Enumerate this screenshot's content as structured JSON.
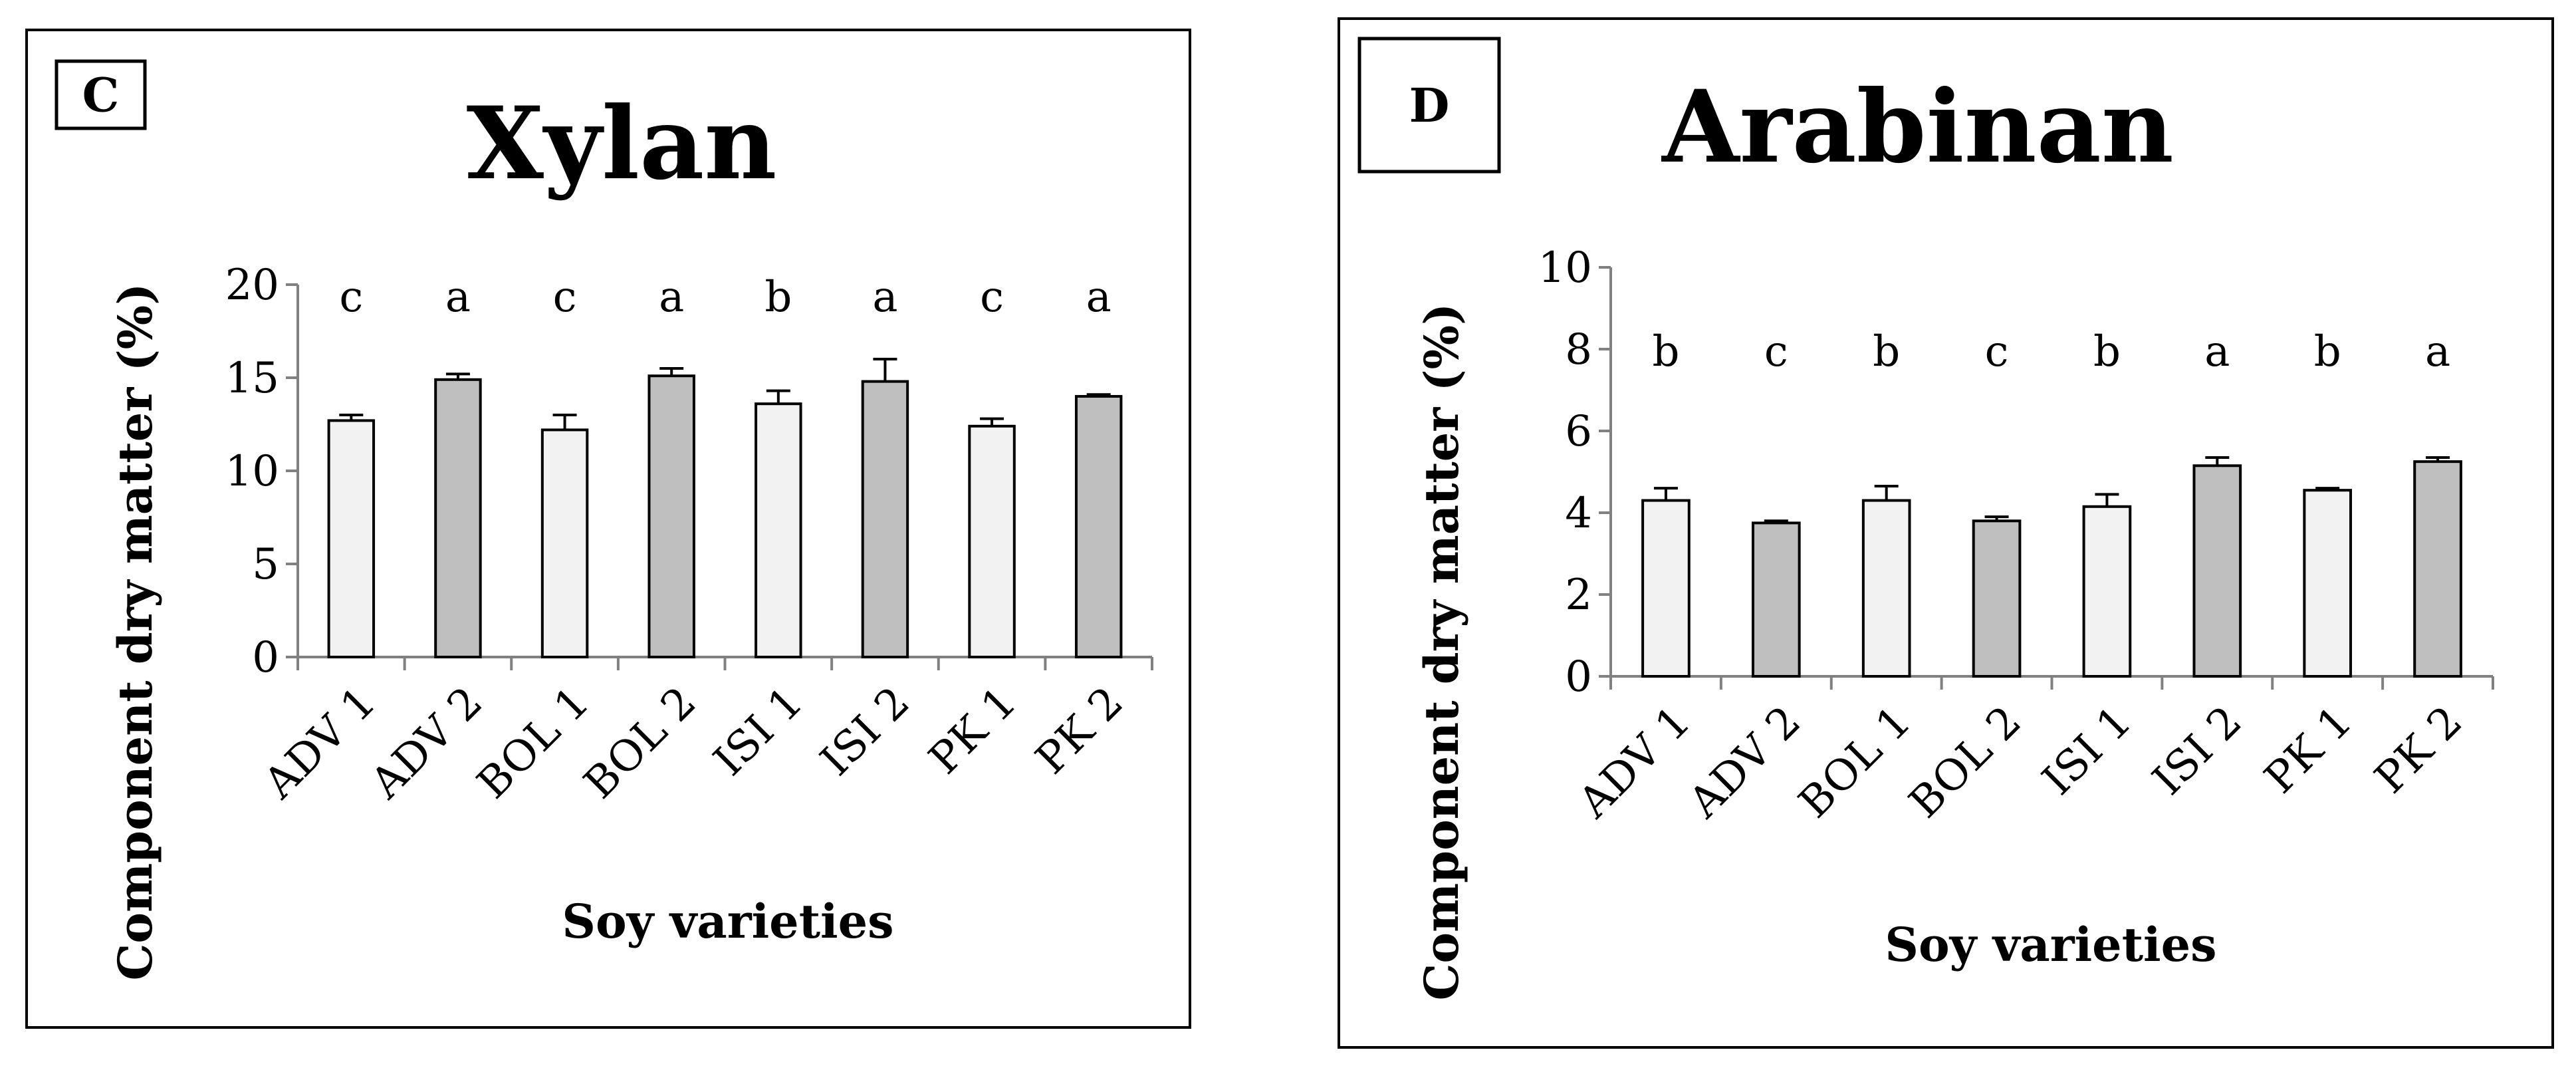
{
  "chart_data": [
    {
      "type": "bar",
      "panel_label": "C",
      "title": "Xylan",
      "xlabel": "Soy varieties",
      "ylabel": "Component dry matter (%)",
      "ylim": [
        0,
        20
      ],
      "yticks": [
        0,
        5,
        10,
        15,
        20
      ],
      "grid": false,
      "legend": "none",
      "categories": [
        "ADV 1",
        "ADV 2",
        "BOL 1",
        "BOL 2",
        "ISI 1",
        "ISI 2",
        "PK 1",
        "PK 2"
      ],
      "values": [
        12.7,
        14.9,
        12.2,
        15.1,
        13.6,
        14.8,
        12.4,
        14.0
      ],
      "errors": [
        0.3,
        0.3,
        0.8,
        0.4,
        0.7,
        1.2,
        0.4,
        0.1
      ],
      "significance_letters": [
        "c",
        "a",
        "c",
        "a",
        "b",
        "a",
        "c",
        "a"
      ],
      "bar_colors": [
        "#f2f2f2",
        "#bfbfbf",
        "#f2f2f2",
        "#bfbfbf",
        "#f2f2f2",
        "#bfbfbf",
        "#f2f2f2",
        "#bfbfbf"
      ]
    },
    {
      "type": "bar",
      "panel_label": "D",
      "title": "Arabinan",
      "xlabel": "Soy varieties",
      "ylabel": "Component dry matter (%)",
      "ylim": [
        0,
        10
      ],
      "yticks": [
        0,
        2,
        4,
        6,
        8,
        10
      ],
      "grid": false,
      "legend": "none",
      "categories": [
        "ADV 1",
        "ADV 2",
        "BOL 1",
        "BOL 2",
        "ISI 1",
        "ISI 2",
        "PK 1",
        "PK 2"
      ],
      "values": [
        4.3,
        3.75,
        4.3,
        3.8,
        4.15,
        5.15,
        4.55,
        5.25
      ],
      "errors": [
        0.3,
        0.05,
        0.35,
        0.1,
        0.3,
        0.2,
        0.05,
        0.1
      ],
      "significance_letters": [
        "b",
        "c",
        "b",
        "c",
        "b",
        "a",
        "b",
        "a"
      ],
      "bar_colors": [
        "#f2f2f2",
        "#bfbfbf",
        "#f2f2f2",
        "#bfbfbf",
        "#f2f2f2",
        "#bfbfbf",
        "#f2f2f2",
        "#bfbfbf"
      ]
    }
  ]
}
